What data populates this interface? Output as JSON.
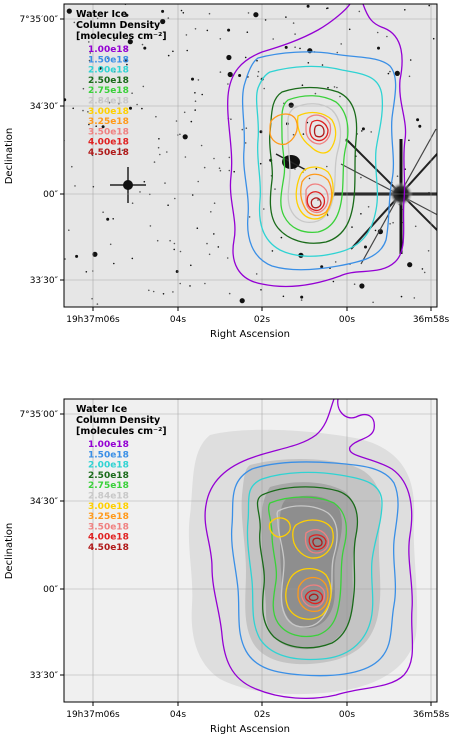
{
  "chart_data": [
    {
      "type": "contour",
      "background": "infrared star field image (grayscale)",
      "legend_title": [
        "Water Ice",
        "Column Density",
        "[molecules cm⁻²]"
      ],
      "xlabel": "Right Ascension",
      "ylabel": "Declination",
      "x_ticks": [
        {
          "label": "19h37m06s",
          "value": "19:37:06"
        },
        {
          "label": "04s",
          "value": "19:37:04"
        },
        {
          "label": "02s",
          "value": "19:37:02"
        },
        {
          "label": "00s",
          "value": "19:37:00"
        },
        {
          "label": "36m58s",
          "value": "19:36:58"
        }
      ],
      "y_ticks": [
        {
          "label": "7°35′00″",
          "value": "+07:35:00"
        },
        {
          "label": "34′30″",
          "value": "+07:34:30"
        },
        {
          "label": "00″",
          "value": "+07:34:00"
        },
        {
          "label": "33′30″",
          "value": "+07:33:30"
        }
      ],
      "grid": true,
      "legend_placement": "top-left",
      "contour_levels": [
        {
          "label": "1.00e18",
          "value": 1e+18,
          "color": "#9400d3"
        },
        {
          "label": "1.50e18",
          "value": 1.5e+18,
          "color": "#3a8fe6"
        },
        {
          "label": "2.00e18",
          "value": 2e+18,
          "color": "#2fd3d3"
        },
        {
          "label": "2.50e18",
          "value": 2.5e+18,
          "color": "#1a6b1a"
        },
        {
          "label": "2.75e18",
          "value": 2.75e+18,
          "color": "#3ad13a"
        },
        {
          "label": "2.84e18",
          "value": 2.84e+18,
          "color": "#c8c8c8"
        },
        {
          "label": "3.00e18",
          "value": 3e+18,
          "color": "#ffd000"
        },
        {
          "label": "3.25e18",
          "value": 3.25e+18,
          "color": "#ff9a1a"
        },
        {
          "label": "3.50e18",
          "value": 3.5e+18,
          "color": "#f08080"
        },
        {
          "label": "4.00e18",
          "value": 4e+18,
          "color": "#e02020"
        },
        {
          "label": "4.50e18",
          "value": 4.5e+18,
          "color": "#b01a1a"
        }
      ]
    },
    {
      "type": "contour",
      "background": "grayscale column density map",
      "legend_title": [
        "Water Ice",
        "Column Density",
        "[molecules cm⁻²]"
      ],
      "xlabel": "Right Ascension",
      "ylabel": "Declination",
      "x_ticks": [
        {
          "label": "19h37m06s",
          "value": "19:37:06"
        },
        {
          "label": "04s",
          "value": "19:37:04"
        },
        {
          "label": "02s",
          "value": "19:37:02"
        },
        {
          "label": "00s",
          "value": "19:37:00"
        },
        {
          "label": "36m58s",
          "value": "19:36:58"
        }
      ],
      "y_ticks": [
        {
          "label": "7°35′00″",
          "value": "+07:35:00"
        },
        {
          "label": "34′30″",
          "value": "+07:34:30"
        },
        {
          "label": "00″",
          "value": "+07:34:00"
        },
        {
          "label": "33′30″",
          "value": "+07:33:30"
        }
      ],
      "grid": true,
      "legend_placement": "top-left",
      "contour_levels": [
        {
          "label": "1.00e18",
          "value": 1e+18,
          "color": "#9400d3"
        },
        {
          "label": "1.50e18",
          "value": 1.5e+18,
          "color": "#3a8fe6"
        },
        {
          "label": "2.00e18",
          "value": 2e+18,
          "color": "#2fd3d3"
        },
        {
          "label": "2.50e18",
          "value": 2.5e+18,
          "color": "#1a6b1a"
        },
        {
          "label": "2.75e18",
          "value": 2.75e+18,
          "color": "#3ad13a"
        },
        {
          "label": "2.84e18",
          "value": 2.84e+18,
          "color": "#c8c8c8"
        },
        {
          "label": "3.00e18",
          "value": 3e+18,
          "color": "#ffd000"
        },
        {
          "label": "3.25e18",
          "value": 3.25e+18,
          "color": "#ff9a1a"
        },
        {
          "label": "3.50e18",
          "value": 3.5e+18,
          "color": "#f08080"
        },
        {
          "label": "4.00e18",
          "value": 4e+18,
          "color": "#e02020"
        },
        {
          "label": "4.50e18",
          "value": 4.5e+18,
          "color": "#b01a1a"
        }
      ]
    }
  ]
}
